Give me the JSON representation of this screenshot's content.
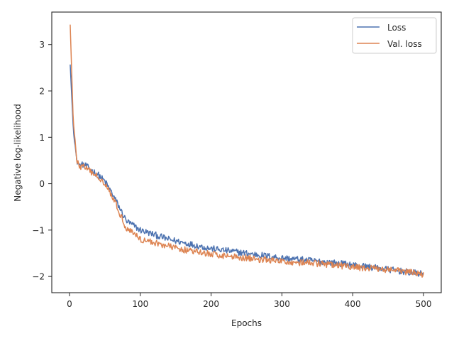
{
  "chart_data": {
    "type": "line",
    "xlabel": "Epochs",
    "ylabel": "Negative log-likelihood",
    "xlim": [
      -25,
      525
    ],
    "ylim": [
      -2.35,
      3.7
    ],
    "xticks": [
      0,
      100,
      200,
      300,
      400,
      500
    ],
    "yticks": [
      -2,
      -1,
      0,
      1,
      2,
      3
    ],
    "xtick_labels": [
      "0",
      "100",
      "200",
      "300",
      "400",
      "500"
    ],
    "ytick_labels": [
      "−2",
      "−1",
      "0",
      "1",
      "2",
      "3"
    ],
    "grid": false,
    "legend_position": "top-right",
    "series": [
      {
        "name": "Loss",
        "color": "#4c72b0",
        "x": [
          1,
          5,
          10,
          15,
          20,
          30,
          40,
          50,
          60,
          70,
          80,
          90,
          100,
          120,
          140,
          170,
          200,
          250,
          300,
          350,
          400,
          450,
          500
        ],
        "values": [
          2.57,
          1.3,
          0.5,
          0.38,
          0.42,
          0.3,
          0.2,
          0.05,
          -0.2,
          -0.5,
          -0.8,
          -0.9,
          -1.0,
          -1.1,
          -1.2,
          -1.3,
          -1.4,
          -1.5,
          -1.6,
          -1.67,
          -1.75,
          -1.85,
          -1.95
        ],
        "noise": 0.07
      },
      {
        "name": "Val. loss",
        "color": "#dd8452",
        "x": [
          1,
          5,
          10,
          15,
          20,
          30,
          40,
          50,
          60,
          70,
          80,
          90,
          100,
          120,
          140,
          170,
          200,
          250,
          300,
          350,
          400,
          450,
          500
        ],
        "values": [
          3.43,
          1.5,
          0.5,
          0.36,
          0.38,
          0.25,
          0.15,
          0.02,
          -0.25,
          -0.6,
          -0.95,
          -1.05,
          -1.2,
          -1.27,
          -1.35,
          -1.45,
          -1.52,
          -1.6,
          -1.68,
          -1.72,
          -1.8,
          -1.85,
          -1.95
        ],
        "noise": 0.07
      }
    ]
  }
}
